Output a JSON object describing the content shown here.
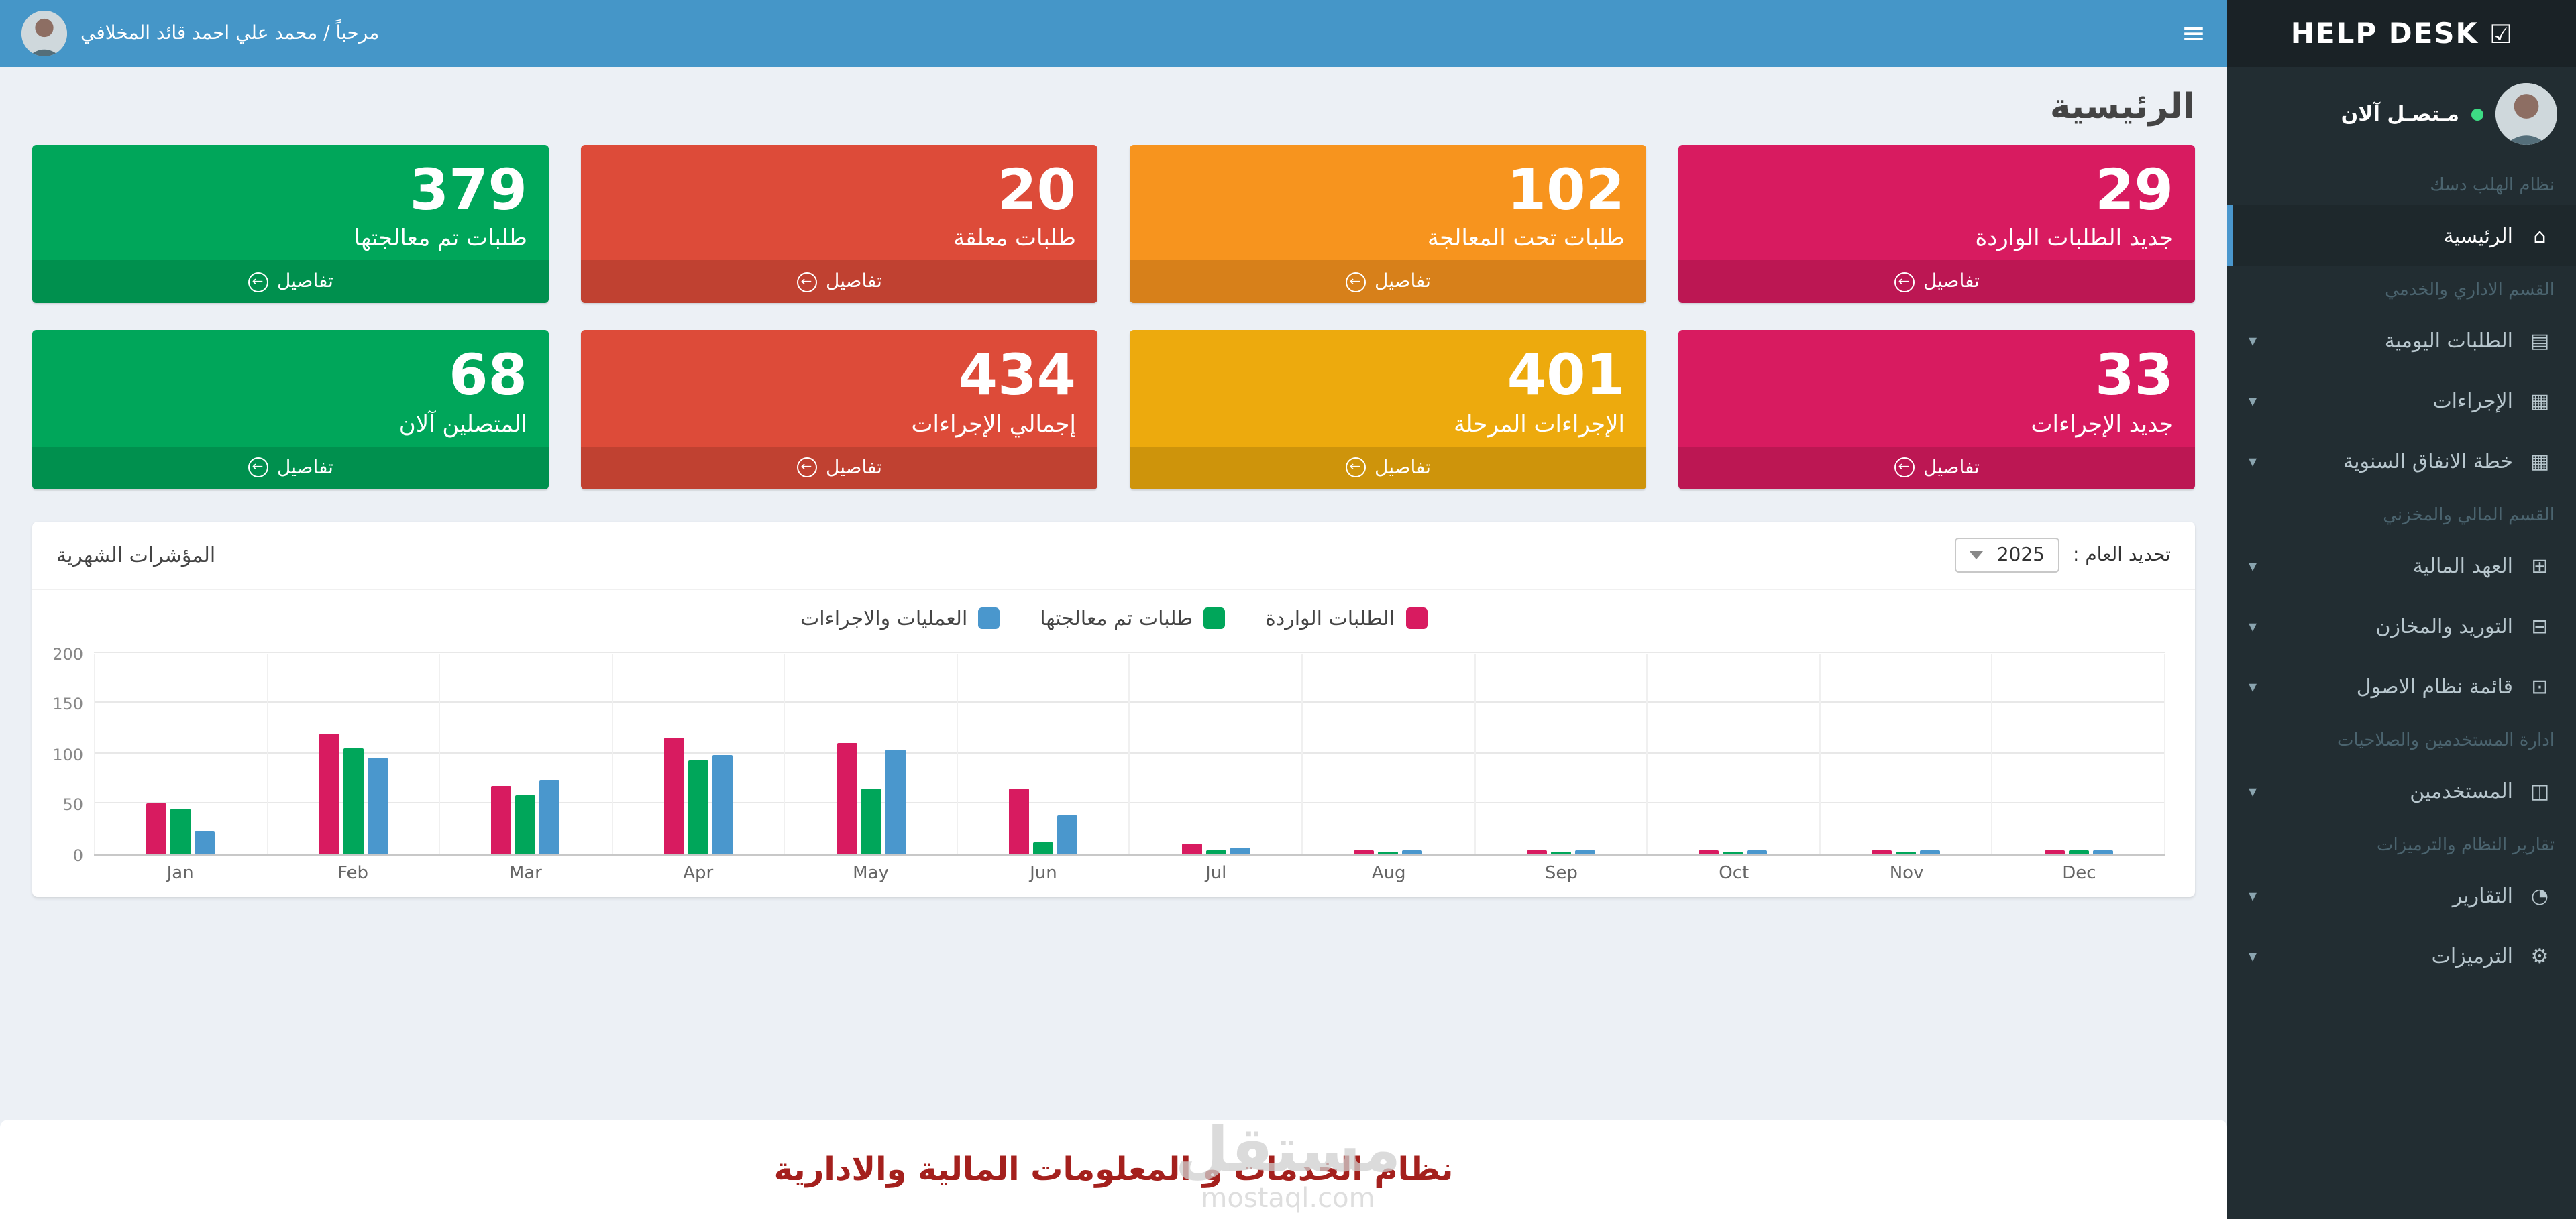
{
  "brand": {
    "title": "HELP DESK",
    "icon_glyph": "☑"
  },
  "topbar": {
    "greeting": "مرحباً / محمد علي احمد قائد المخلافي",
    "hamburger_glyph": "≡"
  },
  "sidebar": {
    "user": {
      "status": "مـتصـل آلان"
    },
    "caret_glyph": "▾",
    "items": [
      {
        "type": "header",
        "label": "نظام الهلب دسك"
      },
      {
        "type": "link",
        "label": "الرئيسية",
        "glyph": "⌂",
        "active": true
      },
      {
        "type": "header",
        "label": "القسم الاداري والخدمي"
      },
      {
        "type": "link",
        "label": "الطلبات اليومية",
        "glyph": "▤",
        "caret": true
      },
      {
        "type": "link",
        "label": "الإجراءات",
        "glyph": "▦",
        "caret": true
      },
      {
        "type": "link",
        "label": "خطة الانفاق السنوية",
        "glyph": "▦",
        "caret": true
      },
      {
        "type": "header",
        "label": "القسم المالي والمخزني"
      },
      {
        "type": "link",
        "label": "العهد المالية",
        "glyph": "⊞",
        "caret": true
      },
      {
        "type": "link",
        "label": "التوريد والمخازن",
        "glyph": "⊟",
        "caret": true
      },
      {
        "type": "link",
        "label": "قائمة نظام الاصول",
        "glyph": "⊡",
        "caret": true
      },
      {
        "type": "header",
        "label": "ادارة المستخدمين والصلاحيات"
      },
      {
        "type": "link",
        "label": "المستخدمين",
        "glyph": "◫",
        "caret": true
      },
      {
        "type": "header",
        "label": "تقارير النظام والترميزات"
      },
      {
        "type": "link",
        "label": "التقارير",
        "glyph": "◔",
        "caret": true
      },
      {
        "type": "link",
        "label": "الترميزات",
        "glyph": "⚙",
        "caret": true
      }
    ]
  },
  "page": {
    "title": "الرئيسية"
  },
  "labels": {
    "details": "تفاصيل",
    "details_icon_glyph": "←"
  },
  "cards": [
    {
      "value": "29",
      "label": "جديد الطلبات الواردة",
      "color": "#d81b60"
    },
    {
      "value": "102",
      "label": "طلبات تحت المعالجة",
      "color": "#f7941e"
    },
    {
      "value": "20",
      "label": "طلبات معلقة",
      "color": "#dd4b39"
    },
    {
      "value": "379",
      "label": "طلبات تم معالجتها",
      "color": "#00a65a"
    },
    {
      "value": "33",
      "label": "جديد الإجراءات",
      "color": "#d81b60"
    },
    {
      "value": "401",
      "label": "الإجراءات المرحلة",
      "color": "#edaa0d"
    },
    {
      "value": "434",
      "label": "إجمالي الإجراءات",
      "color": "#dd4b39"
    },
    {
      "value": "68",
      "label": "المتصلين آلان",
      "color": "#00a65a"
    }
  ],
  "chart_panel": {
    "title": "المؤشرات الشهرية",
    "year_label": "تحديد العام :",
    "year_value": "2025"
  },
  "chart_data": {
    "type": "bar",
    "title": "المؤشرات الشهرية",
    "categories": [
      "Jan",
      "Feb",
      "Mar",
      "Apr",
      "May",
      "Jun",
      "Jul",
      "Aug",
      "Sep",
      "Oct",
      "Nov",
      "Dec"
    ],
    "series": [
      {
        "name": "الطلبات الواردة",
        "color": "#d81b60",
        "values": [
          50,
          120,
          68,
          115,
          110,
          65,
          10,
          3,
          3,
          3,
          3,
          4
        ]
      },
      {
        "name": "طلبات تم معالجتها",
        "color": "#00a65a",
        "values": [
          45,
          105,
          58,
          93,
          65,
          12,
          4,
          2,
          2,
          2,
          2,
          3
        ]
      },
      {
        "name": "العمليات والاجراءات",
        "color": "#4a97cd",
        "values": [
          22,
          95,
          73,
          98,
          103,
          38,
          6,
          3,
          3,
          3,
          3,
          3
        ]
      }
    ],
    "ylim": [
      0,
      200
    ],
    "yticks": [
      0,
      50,
      100,
      150,
      200
    ],
    "grid": true,
    "legend_position": "top-center"
  },
  "watermark": {
    "line1": "مستقل",
    "line2": "mostaql.com"
  },
  "footer": {
    "text": "نظام الخدمات و المعلومات المالية والادارية"
  },
  "colors": {
    "topbar": "#4596c8",
    "sidebar": "#222d32",
    "sidebar_active": "#1e282c",
    "accent": "#4a97cd",
    "online_dot": "#3ddc84",
    "footer_text": "#a4201d",
    "content_bg": "#ecf0f5"
  }
}
